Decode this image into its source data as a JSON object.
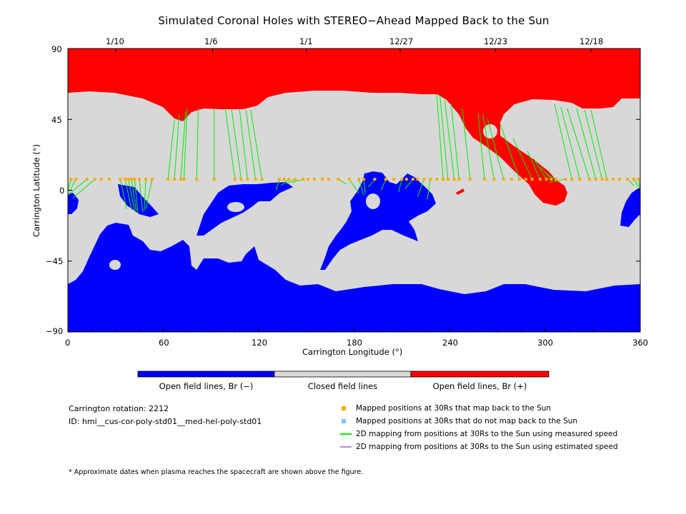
{
  "title": "Simulated Coronal Holes with STEREO−Ahead Mapped Back to the Sun",
  "chart_data": {
    "type": "heatmap",
    "xlabel": "Carrington Longitude (°)",
    "ylabel": "Carrington Latitude (°)",
    "xlim": [
      0,
      360
    ],
    "ylim": [
      -90,
      90
    ],
    "x_ticks": [
      "0",
      "60",
      "120",
      "180",
      "240",
      "300",
      "360"
    ],
    "y_ticks": [
      "90",
      "45",
      "0",
      "−45",
      "−90"
    ],
    "top_axis_dates": [
      {
        "label": "1/10",
        "lon": 30
      },
      {
        "label": "1/6",
        "lon": 91
      },
      {
        "label": "1/1",
        "lon": 150
      },
      {
        "label": "12/27",
        "lon": 209
      },
      {
        "label": "12/23",
        "lon": 269
      },
      {
        "label": "12/18",
        "lon": 329
      }
    ],
    "regions": [
      {
        "name": "Open field lines, Br (−)",
        "color": "#0000ff"
      },
      {
        "name": "Closed field lines",
        "color": "#d8d8d8"
      },
      {
        "name": "Open field lines, Br (+)",
        "color": "#ff0000"
      }
    ],
    "mapping_lines": [
      [
        2,
        7,
        0,
        0
      ],
      [
        5,
        7,
        1,
        -1
      ],
      [
        12,
        7,
        0,
        -3
      ],
      [
        17,
        7,
        3,
        -5
      ],
      [
        33,
        7,
        37,
        -12
      ],
      [
        36,
        7,
        40,
        -12
      ],
      [
        38,
        7,
        42,
        -13
      ],
      [
        40,
        7,
        43,
        -13
      ],
      [
        42,
        7,
        44,
        -14
      ],
      [
        45,
        7,
        47,
        -14
      ],
      [
        49,
        7,
        48,
        -13
      ],
      [
        53,
        7,
        49,
        -12
      ],
      [
        63,
        7,
        67,
        45
      ],
      [
        67,
        7,
        70,
        48
      ],
      [
        71,
        7,
        74,
        50
      ],
      [
        73,
        7,
        75,
        52
      ],
      [
        81,
        7,
        82,
        52
      ],
      [
        92,
        7,
        92,
        52
      ],
      [
        105,
        7,
        99,
        52
      ],
      [
        109,
        7,
        103,
        51
      ],
      [
        113,
        7,
        108,
        51
      ],
      [
        118,
        7,
        112,
        51
      ],
      [
        122,
        7,
        115,
        51
      ],
      [
        133,
        7,
        131,
        0
      ],
      [
        139,
        7,
        134,
        3
      ],
      [
        143,
        7,
        137,
        4
      ],
      [
        148,
        7,
        141,
        5
      ],
      [
        170,
        7,
        175,
        4
      ],
      [
        177,
        7,
        183,
        -2
      ],
      [
        183,
        7,
        186,
        -3
      ],
      [
        186,
        7,
        187,
        -2
      ],
      [
        193,
        7,
        189,
        2
      ],
      [
        200,
        7,
        197,
        0
      ],
      [
        210,
        7,
        208,
        -1
      ],
      [
        217,
        7,
        212,
        1
      ],
      [
        224,
        7,
        220,
        -4
      ],
      [
        228,
        7,
        226,
        -6
      ],
      [
        236,
        7,
        232,
        61
      ],
      [
        239,
        7,
        234,
        60
      ],
      [
        243,
        7,
        237,
        57
      ],
      [
        246,
        7,
        241,
        55
      ],
      [
        253,
        7,
        248,
        52
      ],
      [
        262,
        7,
        258,
        49
      ],
      [
        268,
        7,
        261,
        48
      ],
      [
        274,
        7,
        264,
        45
      ],
      [
        284,
        7,
        272,
        42
      ],
      [
        292,
        7,
        280,
        33
      ],
      [
        297,
        7,
        289,
        25
      ],
      [
        301,
        7,
        293,
        20
      ],
      [
        304,
        7,
        297,
        15
      ],
      [
        307,
        7,
        301,
        10
      ],
      [
        313,
        7,
        303,
        5
      ],
      [
        317,
        7,
        306,
        55
      ],
      [
        322,
        7,
        310,
        53
      ],
      [
        328,
        7,
        314,
        52
      ],
      [
        332,
        7,
        320,
        52
      ],
      [
        336,
        7,
        325,
        51
      ],
      [
        339,
        7,
        329,
        51
      ],
      [
        352,
        7,
        356,
        3
      ],
      [
        356,
        7,
        359,
        2
      ],
      [
        359,
        7,
        360,
        -1
      ]
    ],
    "mapped_back_lon": [
      2,
      5,
      12,
      17,
      21,
      26,
      33,
      36,
      38,
      40,
      42,
      45,
      49,
      53,
      63,
      67,
      71,
      73,
      81,
      92,
      105,
      109,
      113,
      118,
      122,
      133,
      136,
      139,
      143,
      148,
      151,
      155,
      160,
      164,
      170,
      177,
      183,
      186,
      193,
      200,
      205,
      210,
      213,
      217,
      220,
      224,
      228,
      232,
      236,
      239,
      243,
      246,
      253,
      262,
      268,
      274,
      279,
      284,
      288,
      292,
      297,
      301,
      304,
      307,
      313,
      317,
      322,
      328,
      332,
      336,
      339,
      343,
      347,
      352,
      356,
      359
    ],
    "mapped_back_lat": 7,
    "legend": [
      {
        "symbol": "square",
        "color": "#ffaa00",
        "label": "Mapped positions at 30Rs that map back to the Sun"
      },
      {
        "symbol": "square",
        "color": "#80bfff",
        "label": "Mapped positions at 30Rs that do not map back to the Sun"
      },
      {
        "symbol": "line",
        "color": "#00ee00",
        "label": "2D mapping from positions at 30Rs to the Sun using measured speed"
      },
      {
        "symbol": "line",
        "color": "#bb88ee",
        "label": "2D mapping from positions at 30Rs to the Sun using estimated speed"
      }
    ]
  },
  "info": {
    "rotation": "Carrington rotation: 2212",
    "id": "ID: hmi__cus-cor-poly-std01__med-hel-poly-std01"
  },
  "footnote": "* Approximate dates when plasma reaches the spacecraft are shown above the figure."
}
